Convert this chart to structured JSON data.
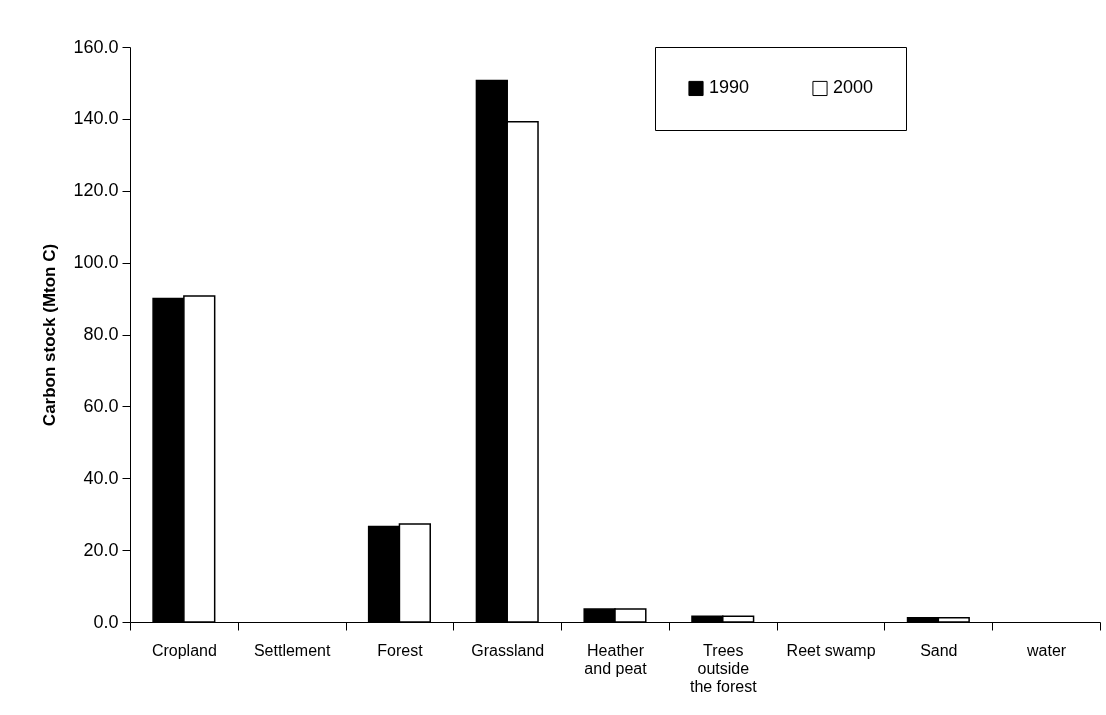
{
  "chart_data": {
    "type": "bar",
    "ylabel": "Carbon stock (Mton C)",
    "categories": [
      "Cropland",
      "Settlement",
      "Forest",
      "Grassland",
      "Heather and peat",
      "Trees outside the forest",
      "Reet swamp",
      "Sand",
      "water"
    ],
    "series": [
      {
        "name": "1990",
        "color": "#000000",
        "values": [
          90.0,
          null,
          26.6,
          150.7,
          3.6,
          1.6,
          null,
          1.2,
          null
        ]
      },
      {
        "name": "2000",
        "color": "#ffffff",
        "values": [
          90.7,
          null,
          27.3,
          139.2,
          3.6,
          1.6,
          null,
          1.2,
          null
        ]
      }
    ],
    "ylim": [
      0,
      160
    ],
    "yticks": [
      {
        "value": 0,
        "label": "0.0"
      },
      {
        "value": 20,
        "label": "20.0"
      },
      {
        "value": 40,
        "label": "40.0"
      },
      {
        "value": 60,
        "label": "60.0"
      },
      {
        "value": 80,
        "label": "80.0"
      },
      {
        "value": 100,
        "label": "100.0"
      },
      {
        "value": 120,
        "label": "120.0"
      },
      {
        "value": 140,
        "label": "140.0"
      },
      {
        "value": 160,
        "label": "160.0"
      }
    ],
    "grid": false,
    "legend": "top right"
  }
}
